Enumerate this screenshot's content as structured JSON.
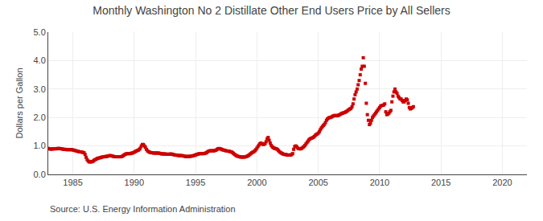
{
  "chart_data": {
    "type": "scatter",
    "title": "Monthly Washington No 2 Distillate Other End Users Price by All Sellers",
    "ylabel": "Dollars per Gallon",
    "annotations": [
      "Source: U.S. Energy Information Administration"
    ],
    "color": "#cc0000",
    "marker": "square",
    "grid": true,
    "xlim": [
      1983.0,
      2022.0
    ],
    "ylim": [
      0.0,
      5.0
    ],
    "xticks": [
      1985,
      1990,
      1995,
      2000,
      2005,
      2010,
      2015,
      2020
    ],
    "yticks": [
      {
        "value": 0.0,
        "label": "0.0"
      },
      {
        "value": 1.0,
        "label": "1.0"
      },
      {
        "value": 2.0,
        "label": "2.0"
      },
      {
        "value": 3.0,
        "label": "3.0"
      },
      {
        "value": 4.0,
        "label": "4.0"
      },
      {
        "value": 5.0,
        "label": "5.0"
      }
    ],
    "x": [
      1983.0,
      1983.083,
      1983.167,
      1983.25,
      1983.333,
      1983.417,
      1983.5,
      1983.583,
      1983.667,
      1983.75,
      1983.833,
      1983.917,
      1984.0,
      1984.083,
      1984.167,
      1984.25,
      1984.333,
      1984.417,
      1984.5,
      1984.583,
      1984.667,
      1984.75,
      1984.833,
      1984.917,
      1985.0,
      1985.083,
      1985.167,
      1985.25,
      1985.333,
      1985.417,
      1985.5,
      1985.583,
      1985.667,
      1985.75,
      1985.833,
      1985.917,
      1986.0,
      1986.083,
      1986.167,
      1986.25,
      1986.333,
      1986.417,
      1986.5,
      1986.583,
      1986.667,
      1986.75,
      1986.833,
      1986.917,
      1987.0,
      1987.083,
      1987.167,
      1987.25,
      1987.333,
      1987.417,
      1987.5,
      1987.583,
      1987.667,
      1987.75,
      1987.833,
      1987.917,
      1988.0,
      1988.083,
      1988.167,
      1988.25,
      1988.333,
      1988.417,
      1988.5,
      1988.583,
      1988.667,
      1988.75,
      1988.833,
      1988.917,
      1989.0,
      1989.083,
      1989.167,
      1989.25,
      1989.333,
      1989.417,
      1989.5,
      1989.583,
      1989.667,
      1989.75,
      1989.833,
      1989.917,
      1990.0,
      1990.083,
      1990.167,
      1990.25,
      1990.333,
      1990.417,
      1990.5,
      1990.583,
      1990.667,
      1990.75,
      1990.833,
      1990.917,
      1991.0,
      1991.083,
      1991.167,
      1991.25,
      1991.333,
      1991.417,
      1991.5,
      1991.583,
      1991.667,
      1991.75,
      1991.833,
      1991.917,
      1992.0,
      1992.083,
      1992.167,
      1992.25,
      1992.333,
      1992.417,
      1992.5,
      1992.583,
      1992.667,
      1992.75,
      1992.833,
      1992.917,
      1993.0,
      1993.083,
      1993.167,
      1993.25,
      1993.333,
      1993.417,
      1993.5,
      1993.583,
      1993.667,
      1993.75,
      1993.833,
      1993.917,
      1994.0,
      1994.083,
      1994.167,
      1994.25,
      1994.333,
      1994.417,
      1994.5,
      1994.583,
      1994.667,
      1994.75,
      1994.833,
      1994.917,
      1995.0,
      1995.083,
      1995.167,
      1995.25,
      1995.333,
      1995.417,
      1995.5,
      1995.583,
      1995.667,
      1995.75,
      1995.833,
      1995.917,
      1996.0,
      1996.083,
      1996.167,
      1996.25,
      1996.333,
      1996.417,
      1996.5,
      1996.583,
      1996.667,
      1996.75,
      1996.833,
      1996.917,
      1997.0,
      1997.083,
      1997.167,
      1997.25,
      1997.333,
      1997.417,
      1997.5,
      1997.583,
      1997.667,
      1997.75,
      1997.833,
      1997.917,
      1998.0,
      1998.083,
      1998.167,
      1998.25,
      1998.333,
      1998.417,
      1998.5,
      1998.583,
      1998.667,
      1998.75,
      1998.833,
      1998.917,
      1999.0,
      1999.083,
      1999.167,
      1999.25,
      1999.333,
      1999.417,
      1999.5,
      1999.583,
      1999.667,
      1999.75,
      1999.833,
      1999.917,
      2000.0,
      2000.083,
      2000.167,
      2000.25,
      2000.333,
      2000.417,
      2000.5,
      2000.583,
      2000.667,
      2000.75,
      2000.833,
      2000.917,
      2001.0,
      2001.083,
      2001.167,
      2001.25,
      2001.333,
      2001.417,
      2001.5,
      2001.583,
      2001.667,
      2001.75,
      2001.833,
      2001.917,
      2002.0,
      2002.083,
      2002.167,
      2002.25,
      2002.333,
      2002.417,
      2002.5,
      2002.583,
      2002.667,
      2002.75,
      2002.833,
      2002.917,
      2003.0,
      2003.083,
      2003.167,
      2003.25,
      2003.333,
      2003.417,
      2003.5,
      2003.583,
      2003.667,
      2003.75,
      2003.833,
      2003.917,
      2004.0,
      2004.083,
      2004.167,
      2004.25,
      2004.333,
      2004.417,
      2004.5,
      2004.583,
      2004.667,
      2004.75,
      2004.833,
      2004.917,
      2005.0,
      2005.083,
      2005.167,
      2005.25,
      2005.333,
      2005.417,
      2005.5,
      2005.583,
      2005.667,
      2005.75,
      2005.833,
      2005.917,
      2006.0,
      2006.083,
      2006.167,
      2006.25,
      2006.333,
      2006.417,
      2006.5,
      2006.583,
      2006.667,
      2006.75,
      2006.833,
      2006.917,
      2007.0,
      2007.083,
      2007.167,
      2007.25,
      2007.333,
      2007.417,
      2007.5,
      2007.583,
      2007.667,
      2007.75,
      2007.833,
      2007.917,
      2008.0,
      2008.083,
      2008.167,
      2008.25,
      2008.333,
      2008.417,
      2008.5,
      2008.583,
      2008.667,
      2008.75,
      2008.833,
      2008.917,
      2009.0,
      2009.083,
      2009.167,
      2009.25,
      2009.333,
      2009.417,
      2009.5,
      2009.583,
      2009.667,
      2009.75,
      2009.833,
      2009.917,
      2010.0,
      2010.083,
      2010.167,
      2010.25,
      2010.333,
      2010.417,
      2010.5,
      2010.583,
      2010.667,
      2010.75,
      2010.833,
      2010.917,
      2011.0,
      2011.083,
      2011.167,
      2011.25,
      2011.333,
      2011.417,
      2011.5,
      2011.583,
      2011.667,
      2011.75,
      2011.833,
      2011.917,
      2012.0,
      2012.083,
      2012.167,
      2012.25,
      2012.333,
      2012.417,
      2012.5,
      2012.583,
      2012.667,
      2012.75
    ],
    "values": [
      0.91,
      0.9,
      0.89,
      0.89,
      0.89,
      0.9,
      0.9,
      0.9,
      0.9,
      0.91,
      0.91,
      0.91,
      0.9,
      0.9,
      0.89,
      0.88,
      0.88,
      0.88,
      0.87,
      0.87,
      0.87,
      0.87,
      0.87,
      0.87,
      0.86,
      0.85,
      0.84,
      0.83,
      0.82,
      0.81,
      0.8,
      0.79,
      0.79,
      0.78,
      0.77,
      0.76,
      0.7,
      0.6,
      0.52,
      0.47,
      0.44,
      0.44,
      0.44,
      0.45,
      0.47,
      0.5,
      0.52,
      0.54,
      0.56,
      0.57,
      0.58,
      0.59,
      0.6,
      0.61,
      0.62,
      0.62,
      0.63,
      0.63,
      0.64,
      0.65,
      0.66,
      0.66,
      0.65,
      0.64,
      0.63,
      0.62,
      0.62,
      0.62,
      0.62,
      0.62,
      0.62,
      0.62,
      0.63,
      0.65,
      0.68,
      0.7,
      0.72,
      0.73,
      0.73,
      0.73,
      0.73,
      0.74,
      0.75,
      0.76,
      0.78,
      0.8,
      0.82,
      0.84,
      0.85,
      0.88,
      0.92,
      1.0,
      1.05,
      1.05,
      1.0,
      0.95,
      0.88,
      0.83,
      0.8,
      0.78,
      0.77,
      0.76,
      0.76,
      0.75,
      0.75,
      0.75,
      0.75,
      0.75,
      0.75,
      0.74,
      0.73,
      0.72,
      0.72,
      0.72,
      0.72,
      0.71,
      0.71,
      0.71,
      0.71,
      0.71,
      0.72,
      0.71,
      0.7,
      0.69,
      0.68,
      0.68,
      0.67,
      0.67,
      0.66,
      0.66,
      0.66,
      0.66,
      0.65,
      0.64,
      0.63,
      0.63,
      0.63,
      0.63,
      0.63,
      0.64,
      0.64,
      0.65,
      0.66,
      0.67,
      0.68,
      0.7,
      0.71,
      0.72,
      0.73,
      0.73,
      0.73,
      0.73,
      0.73,
      0.74,
      0.75,
      0.77,
      0.8,
      0.82,
      0.83,
      0.83,
      0.83,
      0.83,
      0.83,
      0.84,
      0.85,
      0.88,
      0.9,
      0.91,
      0.9,
      0.89,
      0.87,
      0.86,
      0.85,
      0.84,
      0.83,
      0.82,
      0.82,
      0.81,
      0.8,
      0.79,
      0.77,
      0.74,
      0.71,
      0.68,
      0.66,
      0.64,
      0.63,
      0.62,
      0.61,
      0.61,
      0.61,
      0.61,
      0.61,
      0.62,
      0.63,
      0.65,
      0.67,
      0.7,
      0.73,
      0.76,
      0.78,
      0.8,
      0.83,
      0.87,
      0.92,
      0.98,
      1.03,
      1.08,
      1.1,
      1.08,
      1.05,
      1.06,
      1.08,
      1.15,
      1.25,
      1.3,
      1.2,
      1.1,
      1.02,
      0.97,
      0.94,
      0.92,
      0.91,
      0.9,
      0.88,
      0.84,
      0.8,
      0.77,
      0.75,
      0.73,
      0.71,
      0.7,
      0.7,
      0.69,
      0.68,
      0.68,
      0.68,
      0.68,
      0.7,
      0.73,
      0.88,
      0.98,
      1.0,
      0.97,
      0.92,
      0.9,
      0.9,
      0.9,
      0.92,
      0.95,
      0.98,
      1.02,
      1.07,
      1.12,
      1.17,
      1.22,
      1.25,
      1.27,
      1.28,
      1.3,
      1.33,
      1.37,
      1.4,
      1.42,
      1.45,
      1.5,
      1.57,
      1.63,
      1.68,
      1.72,
      1.76,
      1.82,
      1.9,
      1.95,
      1.98,
      2.0,
      2.0,
      2.02,
      2.04,
      2.06,
      2.07,
      2.07,
      2.06,
      2.07,
      2.08,
      2.1,
      2.12,
      2.15,
      2.15,
      2.17,
      2.18,
      2.2,
      2.22,
      2.25,
      2.28,
      2.3,
      2.32,
      2.38,
      2.48,
      2.65,
      2.8,
      2.9,
      3.0,
      3.15,
      3.3,
      3.5,
      3.7,
      3.8,
      4.1,
      3.8,
      3.2,
      2.5,
      2.1,
      1.9,
      1.75,
      1.8,
      1.9,
      2.0,
      2.05,
      2.1,
      2.15,
      2.2,
      2.25,
      2.3,
      2.35,
      2.4,
      2.42,
      2.43,
      2.44,
      2.48,
      2.2,
      2.1,
      2.12,
      2.15,
      2.2,
      2.25,
      2.55,
      2.75,
      2.9,
      3.0,
      2.9,
      2.85,
      2.75,
      2.7,
      2.65,
      2.65,
      2.6,
      2.55,
      2.55,
      2.6,
      2.65,
      2.62,
      2.5,
      2.35,
      2.3,
      2.32,
      2.35,
      2.38
    ]
  }
}
